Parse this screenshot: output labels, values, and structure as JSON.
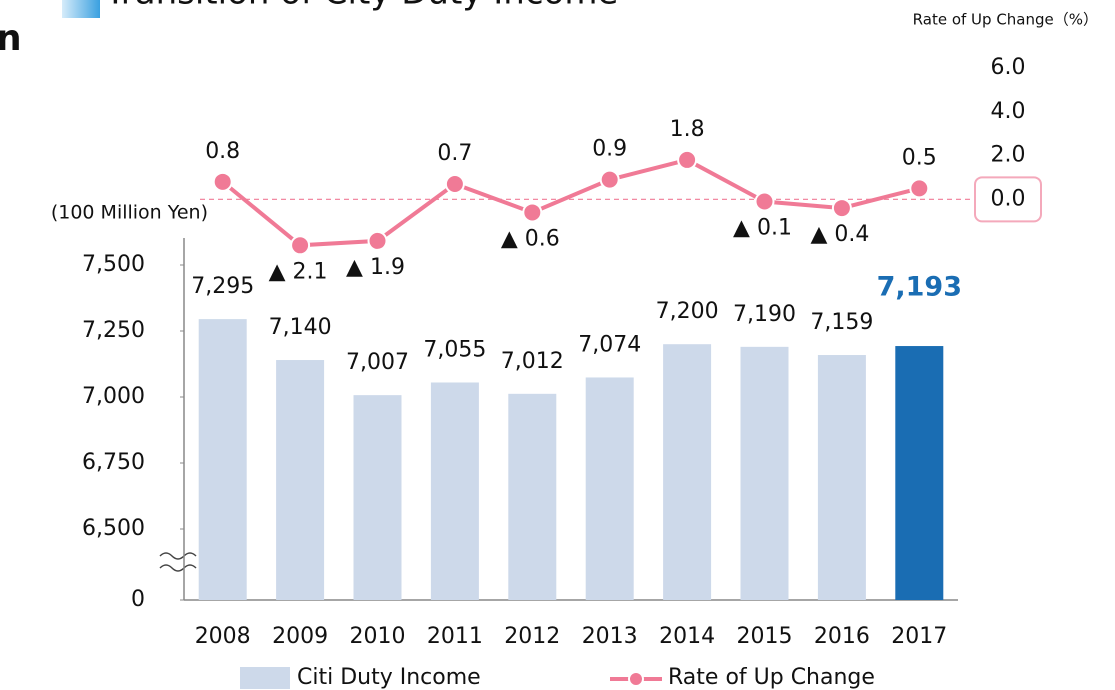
{
  "chart_data": {
    "type": "bar_line",
    "title": "Transition of City Duty Income",
    "heading_fragment": "n",
    "y_label": "(100 Million Yen)",
    "y2_label": "Rate of Up Change（%）",
    "categories": [
      "2008",
      "2009",
      "2010",
      "2011",
      "2012",
      "2013",
      "2014",
      "2015",
      "2016",
      "2017"
    ],
    "series": [
      {
        "name": "Citi Duty Income",
        "type": "bar",
        "colors": [
          "#cdd9ea",
          "#cdd9ea",
          "#cdd9ea",
          "#cdd9ea",
          "#cdd9ea",
          "#cdd9ea",
          "#cdd9ea",
          "#cdd9ea",
          "#cdd9ea",
          "#1a6db3"
        ],
        "color": "#cdd9ea",
        "values": [
          7295,
          7140,
          7007,
          7055,
          7012,
          7074,
          7200,
          7190,
          7159,
          7193
        ],
        "value_labels": [
          "7,295",
          "7,140",
          "7,007",
          "7,055",
          "7,012",
          "7,074",
          "7,200",
          "7,190",
          "7,159",
          "7,193"
        ]
      },
      {
        "name": "Rate of Up Change",
        "type": "line",
        "axis": "y2",
        "color": "#f07a96",
        "values": [
          0.8,
          -2.1,
          -1.9,
          0.7,
          -0.6,
          0.9,
          1.8,
          -0.1,
          -0.4,
          0.5
        ],
        "value_labels": [
          "0.8",
          "▲ 2.1",
          "▲ 1.9",
          "0.7",
          "▲ 0.6",
          "0.9",
          "1.8",
          "▲ 0.1",
          "▲ 0.4",
          "0.5"
        ]
      }
    ],
    "ylim": [
      6500,
      7500
    ],
    "axis_break": true,
    "yticks": [
      0,
      {
        "value": 6500,
        "label": "6,500"
      },
      {
        "value": 6750,
        "label": "6,750"
      },
      {
        "value": 7000,
        "label": "7,000"
      },
      {
        "value": 7250,
        "label": "7,250"
      },
      {
        "value": 7500,
        "label": "7,500"
      }
    ],
    "y2lim": [
      -3,
      6
    ],
    "y2ticks": [
      {
        "value": 0,
        "label": "0.0"
      },
      {
        "value": 2,
        "label": "2.0"
      },
      {
        "value": 4,
        "label": "4.0"
      },
      {
        "value": 6,
        "label": "6.0"
      }
    ]
  }
}
